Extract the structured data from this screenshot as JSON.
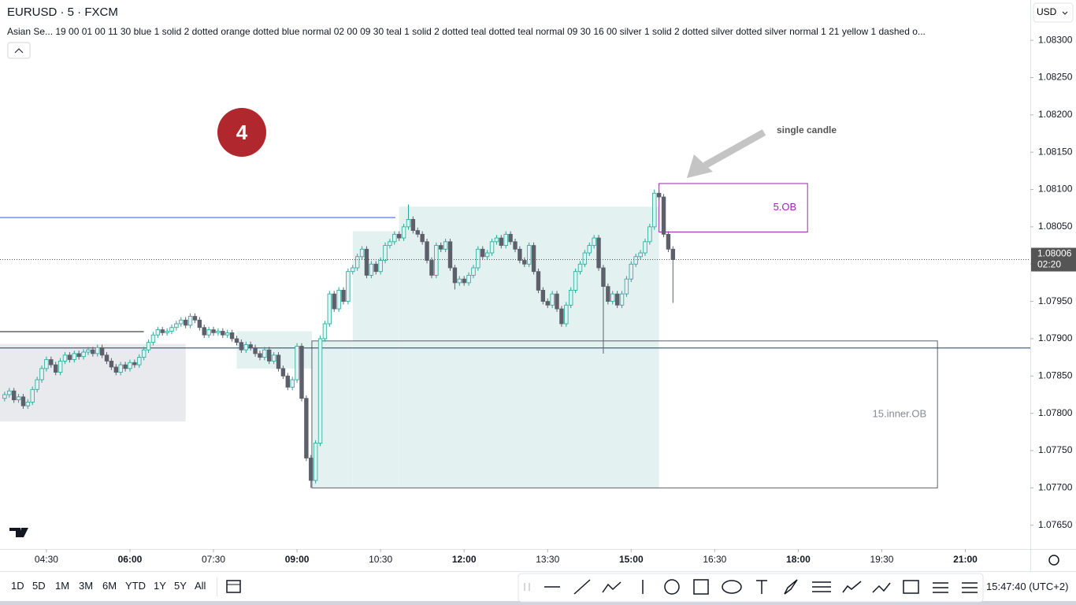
{
  "chart_data": {
    "type": "candlestick",
    "symbol": "EURUSD · 5 · FXCM",
    "indicator": "Asian Se... 19 00 01 00 11 30 blue 1 solid 2 dotted orange dotted blue normal 02 00 09 30 teal 1 solid 2 dotted teal dotted teal normal 09 30 16 00 silver 1 solid 2 dotted silver dotted silver normal 1 21 yellow 1 dashed o...",
    "currency": "USD",
    "up_color": "#26a69a",
    "up_fill": "#e0f2f1",
    "down_color": "#5d606b",
    "xlim": [
      220,
      1330
    ],
    "ylim": [
      1.07618,
      1.08354
    ],
    "xticks": [
      {
        "value": 270,
        "label": "04:30"
      },
      {
        "value": 360,
        "label": "06:00"
      },
      {
        "value": 450,
        "label": "07:30"
      },
      {
        "value": 540,
        "label": "09:00"
      },
      {
        "value": 630,
        "label": "10:30"
      },
      {
        "value": 720,
        "label": "12:00"
      },
      {
        "value": 810,
        "label": "13:30"
      },
      {
        "value": 900,
        "label": "15:00"
      },
      {
        "value": 990,
        "label": "16:30"
      },
      {
        "value": 1080,
        "label": "18:00"
      },
      {
        "value": 1170,
        "label": "19:30"
      },
      {
        "value": 1260,
        "label": "21:00"
      }
    ],
    "yticks": [
      {
        "value": 1.083,
        "label": "1.08300"
      },
      {
        "value": 1.0825,
        "label": "1.08250"
      },
      {
        "value": 1.082,
        "label": "1.08200"
      },
      {
        "value": 1.0815,
        "label": "1.08150"
      },
      {
        "value": 1.081,
        "label": "1.08100"
      },
      {
        "value": 1.0805,
        "label": "1.08050"
      },
      {
        "value": 1.08,
        "label": "1.08000"
      },
      {
        "value": 1.0795,
        "label": "1.07950"
      },
      {
        "value": 1.079,
        "label": "1.07900"
      },
      {
        "value": 1.0785,
        "label": "1.07850"
      },
      {
        "value": 1.078,
        "label": "1.07800"
      },
      {
        "value": 1.0775,
        "label": "1.07750"
      },
      {
        "value": 1.077,
        "label": "1.07700"
      },
      {
        "value": 1.0765,
        "label": "1.07650"
      }
    ],
    "x": [
      225,
      230,
      235,
      240,
      245,
      250,
      255,
      260,
      265,
      270,
      275,
      280,
      285,
      290,
      295,
      300,
      305,
      310,
      315,
      320,
      325,
      330,
      335,
      340,
      345,
      350,
      355,
      360,
      365,
      370,
      375,
      380,
      385,
      390,
      395,
      400,
      405,
      410,
      415,
      420,
      425,
      430,
      435,
      440,
      445,
      450,
      455,
      460,
      465,
      470,
      475,
      480,
      485,
      490,
      495,
      500,
      505,
      510,
      515,
      520,
      525,
      530,
      535,
      540,
      545,
      550,
      555,
      560,
      565,
      570,
      575,
      580,
      585,
      590,
      595,
      600,
      605,
      610,
      615,
      620,
      625,
      630,
      635,
      640,
      645,
      650,
      655,
      660,
      665,
      670,
      675,
      680,
      685,
      690,
      695,
      700,
      705,
      710,
      715,
      720,
      725,
      730,
      735,
      740,
      745,
      750,
      755,
      760,
      765,
      770,
      775,
      780,
      785,
      790,
      795,
      800,
      805,
      810,
      815,
      820,
      825,
      830,
      835,
      840,
      845,
      850,
      855,
      860,
      865,
      870,
      875,
      880,
      885,
      890,
      895,
      900,
      905,
      910,
      915,
      920,
      925,
      930,
      935,
      940,
      945
    ],
    "open": [
      1.0782,
      1.07825,
      1.0783,
      1.07818,
      1.07822,
      1.0781,
      1.07815,
      1.07832,
      1.07845,
      1.0786,
      1.07872,
      1.07865,
      1.07855,
      1.0787,
      1.07878,
      1.07872,
      1.0788,
      1.07876,
      1.07882,
      1.07885,
      1.0788,
      1.07888,
      1.07878,
      1.0787,
      1.07862,
      1.07855,
      1.07865,
      1.0786,
      1.07868,
      1.07865,
      1.07875,
      1.07885,
      1.07895,
      1.07905,
      1.07912,
      1.07908,
      1.0791,
      1.07915,
      1.0792,
      1.07925,
      1.07918,
      1.0793,
      1.07925,
      1.07915,
      1.07905,
      1.07912,
      1.07908,
      1.0791,
      1.07905,
      1.07908,
      1.079,
      1.07895,
      1.07885,
      1.07892,
      1.07888,
      1.0788,
      1.07875,
      1.07885,
      1.0787,
      1.07878,
      1.0786,
      1.0785,
      1.07835,
      1.07845,
      1.0789,
      1.0782,
      1.0774,
      1.0771,
      1.0776,
      1.079,
      1.0792,
      1.0796,
      1.0794,
      1.07965,
      1.0795,
      1.0799,
      1.07995,
      1.0801,
      1.0802,
      1.07985,
      1.08,
      1.0799,
      1.08005,
      1.08025,
      1.0803,
      1.0804,
      1.08035,
      1.0805,
      1.0806,
      1.08045,
      1.0804,
      1.0803,
      1.08005,
      1.07985,
      1.08025,
      1.0802,
      1.0803,
      1.07995,
      1.07975,
      1.0798,
      1.07975,
      1.07985,
      1.07995,
      1.0802,
      1.0801,
      1.08015,
      1.0803,
      1.08035,
      1.08025,
      1.0804,
      1.0803,
      1.0802,
      1.08005,
      1.08,
      1.08025,
      1.0799,
      1.07965,
      1.0795,
      1.07945,
      1.0796,
      1.0794,
      1.0792,
      1.07945,
      1.07965,
      1.0799,
      1.08,
      1.08015,
      1.08025,
      1.08035,
      1.07995,
      1.0797,
      1.0795,
      1.0796,
      1.07945,
      1.0796,
      1.0798,
      1.08,
      1.0801,
      1.08015,
      1.0803,
      1.0805,
      1.08095,
      1.0809,
      1.0804,
      1.0802
    ],
    "high": [
      1.07829,
      1.07834,
      1.07834,
      1.07826,
      1.07826,
      1.07819,
      1.07836,
      1.07849,
      1.07864,
      1.07876,
      1.07876,
      1.07869,
      1.07874,
      1.07882,
      1.07882,
      1.07884,
      1.07884,
      1.07886,
      1.07889,
      1.07889,
      1.07892,
      1.07892,
      1.07882,
      1.07874,
      1.07866,
      1.07869,
      1.07869,
      1.07872,
      1.07872,
      1.07879,
      1.07889,
      1.07899,
      1.07909,
      1.07916,
      1.07916,
      1.07914,
      1.07919,
      1.07924,
      1.07929,
      1.07929,
      1.07934,
      1.07934,
      1.07929,
      1.07919,
      1.07916,
      1.07916,
      1.07914,
      1.07914,
      1.07912,
      1.07912,
      1.07904,
      1.07899,
      1.07896,
      1.07896,
      1.07892,
      1.07884,
      1.07889,
      1.07889,
      1.07882,
      1.07882,
      1.07864,
      1.07854,
      1.07849,
      1.07894,
      1.07894,
      1.07824,
      1.07744,
      1.07764,
      1.07904,
      1.07924,
      1.07964,
      1.07964,
      1.07969,
      1.07969,
      1.07994,
      1.07999,
      1.08014,
      1.08024,
      1.08024,
      1.08004,
      1.08004,
      1.08009,
      1.08029,
      1.08034,
      1.08044,
      1.08044,
      1.08054,
      1.0808,
      1.08064,
      1.08049,
      1.08044,
      1.08034,
      1.08009,
      1.08029,
      1.08029,
      1.08034,
      1.08034,
      1.07999,
      1.07984,
      1.07984,
      1.07989,
      1.07999,
      1.08024,
      1.08024,
      1.08019,
      1.08034,
      1.08039,
      1.08039,
      1.08044,
      1.08044,
      1.08034,
      1.08024,
      1.08009,
      1.08029,
      1.08029,
      1.07994,
      1.07969,
      1.07954,
      1.07964,
      1.07964,
      1.07944,
      1.07949,
      1.07969,
      1.07994,
      1.08004,
      1.08019,
      1.08029,
      1.08039,
      1.08039,
      1.07999,
      1.07974,
      1.07964,
      1.07964,
      1.07964,
      1.07984,
      1.08004,
      1.08014,
      1.08019,
      1.08034,
      1.08054,
      1.081,
      1.08099,
      1.08094,
      1.08044,
      1.08024
    ],
    "low": [
      1.07816,
      1.07821,
      1.07814,
      1.07814,
      1.07806,
      1.07806,
      1.07811,
      1.07828,
      1.07841,
      1.07856,
      1.07861,
      1.07851,
      1.07851,
      1.07866,
      1.07868,
      1.07868,
      1.07872,
      1.07872,
      1.07878,
      1.07876,
      1.07876,
      1.07874,
      1.07866,
      1.07858,
      1.07851,
      1.07851,
      1.07856,
      1.07856,
      1.07861,
      1.07861,
      1.07871,
      1.07881,
      1.07891,
      1.07901,
      1.07904,
      1.07904,
      1.07906,
      1.07911,
      1.07916,
      1.07914,
      1.07914,
      1.07921,
      1.07911,
      1.07901,
      1.07901,
      1.07904,
      1.07904,
      1.07901,
      1.07901,
      1.07896,
      1.07891,
      1.07881,
      1.07881,
      1.07884,
      1.07876,
      1.07871,
      1.07871,
      1.07866,
      1.07866,
      1.07856,
      1.07846,
      1.07831,
      1.07831,
      1.07841,
      1.07816,
      1.07736,
      1.077,
      1.07706,
      1.07756,
      1.07896,
      1.07916,
      1.07936,
      1.07936,
      1.07946,
      1.07946,
      1.07986,
      1.07991,
      1.08006,
      1.07981,
      1.07981,
      1.07986,
      1.07986,
      1.08001,
      1.08021,
      1.08026,
      1.08031,
      1.08031,
      1.08046,
      1.08041,
      1.08036,
      1.08026,
      1.08001,
      1.07981,
      1.07981,
      1.08016,
      1.08016,
      1.07991,
      1.07966,
      1.07971,
      1.07971,
      1.07971,
      1.07981,
      1.07991,
      1.08006,
      1.08006,
      1.08011,
      1.08026,
      1.08021,
      1.08021,
      1.08026,
      1.08016,
      1.08001,
      1.07996,
      1.07996,
      1.07986,
      1.07961,
      1.07946,
      1.07941,
      1.07941,
      1.07936,
      1.07916,
      1.07916,
      1.07941,
      1.07961,
      1.07986,
      1.07996,
      1.08011,
      1.08021,
      1.07991,
      1.0788,
      1.07946,
      1.07946,
      1.07941,
      1.07941,
      1.07956,
      1.07976,
      1.07996,
      1.08006,
      1.08011,
      1.08026,
      1.08046,
      1.08086,
      1.08036,
      1.08016,
      1.07948
    ],
    "close": [
      1.07825,
      1.0783,
      1.07818,
      1.07822,
      1.0781,
      1.07815,
      1.07832,
      1.07845,
      1.0786,
      1.07872,
      1.07865,
      1.07855,
      1.0787,
      1.07878,
      1.07872,
      1.0788,
      1.07876,
      1.07882,
      1.07885,
      1.0788,
      1.07888,
      1.07878,
      1.0787,
      1.07862,
      1.07855,
      1.07865,
      1.0786,
      1.07868,
      1.07865,
      1.07875,
      1.07885,
      1.07895,
      1.07905,
      1.07912,
      1.07908,
      1.0791,
      1.07915,
      1.0792,
      1.07925,
      1.07918,
      1.0793,
      1.07925,
      1.07915,
      1.07905,
      1.07912,
      1.07908,
      1.0791,
      1.07905,
      1.07908,
      1.079,
      1.07895,
      1.07885,
      1.07892,
      1.07888,
      1.0788,
      1.07875,
      1.07885,
      1.0787,
      1.07878,
      1.0786,
      1.0785,
      1.07835,
      1.07845,
      1.0789,
      1.0782,
      1.0774,
      1.0771,
      1.0776,
      1.079,
      1.0792,
      1.0796,
      1.0794,
      1.07965,
      1.0795,
      1.0799,
      1.07995,
      1.0801,
      1.0802,
      1.07985,
      1.08,
      1.0799,
      1.08005,
      1.08025,
      1.0803,
      1.0804,
      1.08035,
      1.0805,
      1.0806,
      1.08045,
      1.0804,
      1.0803,
      1.08005,
      1.07985,
      1.08025,
      1.0802,
      1.0803,
      1.07995,
      1.07975,
      1.0798,
      1.07975,
      1.07985,
      1.07995,
      1.0802,
      1.0801,
      1.08015,
      1.0803,
      1.08035,
      1.08025,
      1.0804,
      1.0803,
      1.0802,
      1.08005,
      1.08,
      1.08025,
      1.0799,
      1.07965,
      1.0795,
      1.07945,
      1.0796,
      1.0794,
      1.0792,
      1.07945,
      1.07965,
      1.0799,
      1.08,
      1.08015,
      1.08025,
      1.08035,
      1.07995,
      1.0797,
      1.0795,
      1.0796,
      1.07945,
      1.0796,
      1.0798,
      1.08,
      1.0801,
      1.08015,
      1.0803,
      1.0805,
      1.08095,
      1.0809,
      1.0804,
      1.0802,
      1.08006
    ],
    "zones": [
      {
        "x": [
          220,
          420
        ],
        "y": [
          1.07789,
          1.07893
        ],
        "fill": "#e9eaed"
      },
      {
        "x": [
          475,
          556
        ],
        "y": [
          1.0786,
          1.0791
        ],
        "fill": "#e3f2f1"
      },
      {
        "x": [
          556,
          600
        ],
        "y": [
          1.077,
          1.07897
        ],
        "fill": "#e3f2f1"
      },
      {
        "x": [
          600,
          650
        ],
        "y": [
          1.077,
          1.08044
        ],
        "fill": "#e3f2f1"
      },
      {
        "x": [
          650,
          930
        ],
        "y": [
          1.077,
          1.08077
        ],
        "fill": "#e3f2f1"
      },
      {
        "x": [
          930,
          1090
        ],
        "y": [
          1.08043,
          1.08108
        ],
        "stroke": "#9c27b0",
        "label": "5.OB",
        "label_color": "#9c27b0"
      },
      {
        "x": [
          556,
          1230
        ],
        "y": [
          1.077,
          1.07897
        ],
        "stroke": "#5d606b",
        "label": "15.inner.OB",
        "label_color": "#868993"
      }
    ],
    "lines": [
      {
        "y": 1.08063,
        "x": [
          220,
          646
        ],
        "color": "#2962ff"
      },
      {
        "y": 1.0791,
        "x": [
          220,
          375
        ],
        "color": "#131722"
      },
      {
        "y": 1.07888,
        "x": [
          220,
          1330
        ],
        "color": "#1e3d73"
      }
    ],
    "last_price": {
      "value": 1.08006,
      "label": "1.08006"
    },
    "countdown": "02:20",
    "marker": "4",
    "annotation": "single candle"
  },
  "toolbar": {
    "timeframes": [
      "1D",
      "5D",
      "1M",
      "3M",
      "6M",
      "YTD",
      "1Y",
      "5Y",
      "All"
    ],
    "clock": "15:47:40 (UTC+2)"
  }
}
